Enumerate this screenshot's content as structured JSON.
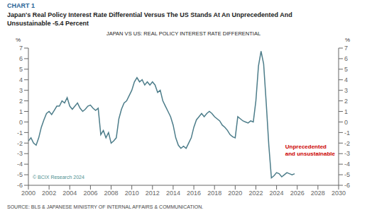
{
  "chart_data": {
    "type": "line",
    "label": "CHART 1",
    "title": "Japan's Real Policy Interest Rate Differential Versus The US Stands At An Unprecedented And\nUnsustainable -5.4 Percent",
    "subtitle": "JAPAN VS US: REAL POLICY INTEREST RATE DIFFERENTIAL",
    "ylabel": "%",
    "y2label": "%",
    "source": "SOURCE: BLS & JAPANESE MINISTRY OF INTERNAL AFFAIRS & COMMUNICATION.",
    "annotations": [
      {
        "text": "Unprecedented\nand unsustainable",
        "color": "#cc0000"
      },
      {
        "text": "© BCIX Research 2024"
      }
    ],
    "color": "#4d7d8a",
    "xlim": [
      2000,
      2030
    ],
    "xticks": [
      2000,
      2002,
      2004,
      2006,
      2008,
      2010,
      2012,
      2014,
      2016,
      2018,
      2020,
      2022,
      2024,
      2026,
      2028,
      2030
    ],
    "ylim": [
      -6,
      7
    ],
    "yticks": [
      -6,
      -5,
      -4,
      -3,
      -2,
      -1,
      0,
      1,
      2,
      3,
      4,
      5,
      6,
      7
    ],
    "y2lim": [
      -6,
      7
    ],
    "y2ticks": [
      -6,
      -5,
      -4,
      -3,
      -2,
      -1,
      0,
      1,
      2,
      3,
      4,
      5,
      6,
      7
    ],
    "x": [
      2000.0,
      2000.25,
      2000.5,
      2000.75,
      2001.0,
      2001.25,
      2001.5,
      2001.75,
      2002.0,
      2002.25,
      2002.5,
      2002.75,
      2003.0,
      2003.25,
      2003.5,
      2003.75,
      2004.0,
      2004.25,
      2004.5,
      2004.75,
      2005.0,
      2005.25,
      2005.5,
      2005.75,
      2006.0,
      2006.25,
      2006.5,
      2006.75,
      2007.0,
      2007.25,
      2007.5,
      2007.75,
      2008.0,
      2008.25,
      2008.5,
      2008.75,
      2009.0,
      2009.25,
      2009.5,
      2009.75,
      2010.0,
      2010.25,
      2010.5,
      2010.75,
      2011.0,
      2011.25,
      2011.5,
      2011.75,
      2012.0,
      2012.25,
      2012.5,
      2012.75,
      2013.0,
      2013.25,
      2013.5,
      2013.75,
      2014.0,
      2014.25,
      2014.5,
      2014.75,
      2015.0,
      2015.25,
      2015.5,
      2015.75,
      2016.0,
      2016.25,
      2016.5,
      2016.75,
      2017.0,
      2017.25,
      2017.5,
      2017.75,
      2018.0,
      2018.25,
      2018.5,
      2018.75,
      2019.0,
      2019.25,
      2019.5,
      2019.75,
      2020.0,
      2020.25,
      2020.5,
      2020.75,
      2021.0,
      2021.25,
      2021.5,
      2021.75,
      2022.0,
      2022.25,
      2022.5,
      2022.75,
      2023.0,
      2023.25,
      2023.5,
      2023.75,
      2024.0,
      2024.25,
      2024.5,
      2024.75,
      2025.0,
      2025.25,
      2025.5,
      2025.75
    ],
    "values": [
      -1.8,
      -1.5,
      -2.0,
      -2.2,
      -1.5,
      -0.5,
      0.2,
      0.8,
      1.0,
      0.7,
      1.1,
      1.5,
      1.5,
      2.0,
      1.8,
      2.3,
      1.5,
      1.2,
      1.5,
      1.8,
      1.3,
      1.0,
      1.2,
      1.5,
      1.6,
      1.3,
      1.1,
      1.3,
      -1.2,
      -0.8,
      -1.5,
      -1.0,
      -2.0,
      -1.8,
      -1.5,
      0.3,
      1.2,
      1.8,
      2.0,
      2.5,
      3.0,
      3.8,
      4.2,
      3.8,
      4.0,
      3.5,
      3.8,
      3.5,
      3.8,
      3.5,
      2.8,
      3.0,
      2.0,
      1.5,
      1.0,
      0.5,
      -0.3,
      -1.5,
      -2.2,
      -2.5,
      -2.3,
      -2.5,
      -2.0,
      -1.5,
      -0.5,
      0.2,
      0.5,
      0.8,
      0.5,
      0.8,
      1.0,
      0.8,
      0.5,
      0.3,
      0.1,
      -0.3,
      -0.5,
      -0.8,
      -1.2,
      -1.4,
      -1.5,
      0.5,
      0.3,
      0.1,
      0.0,
      -0.1,
      0.1,
      0.0,
      2.0,
      5.3,
      6.7,
      5.5,
      1.8,
      -2.2,
      -5.3,
      -5.1,
      -4.8,
      -4.9,
      -5.2,
      -5.0,
      -4.8,
      -4.9,
      -5.0,
      -4.9
    ]
  }
}
